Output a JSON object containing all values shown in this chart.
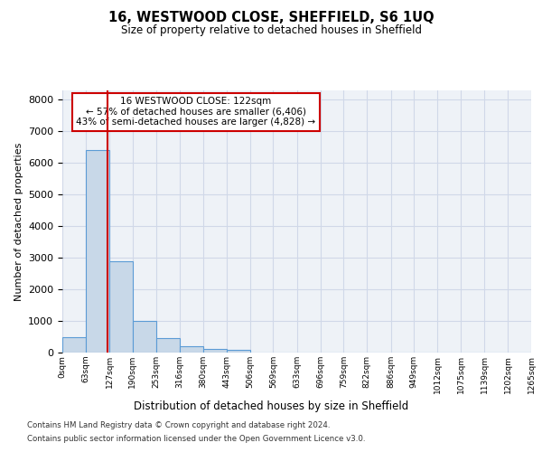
{
  "title": "16, WESTWOOD CLOSE, SHEFFIELD, S6 1UQ",
  "subtitle": "Size of property relative to detached houses in Sheffield",
  "xlabel": "Distribution of detached houses by size in Sheffield",
  "ylabel": "Number of detached properties",
  "property_size": 122,
  "bin_edges": [
    0,
    63,
    127,
    190,
    253,
    316,
    380,
    443,
    506,
    569,
    633,
    696,
    759,
    822,
    886,
    949,
    1012,
    1075,
    1139,
    1202,
    1265
  ],
  "bar_heights": [
    500,
    6400,
    2900,
    1000,
    450,
    200,
    120,
    80,
    0,
    0,
    0,
    0,
    0,
    0,
    0,
    0,
    0,
    0,
    0,
    0
  ],
  "bar_color": "#c8d8e8",
  "bar_edgecolor": "#5b9bd5",
  "redline_color": "#cc0000",
  "grid_color": "#d0d8e8",
  "bg_color": "#eef2f7",
  "annotation_line1": "16 WESTWOOD CLOSE: 122sqm",
  "annotation_line2": "← 57% of detached houses are smaller (6,406)",
  "annotation_line3": "43% of semi-detached houses are larger (4,828) →",
  "annotation_box_edgecolor": "#cc0000",
  "annotation_box_facecolor": "#ffffff",
  "ylim": [
    0,
    8300
  ],
  "yticks": [
    0,
    1000,
    2000,
    3000,
    4000,
    5000,
    6000,
    7000,
    8000
  ],
  "footnote1": "Contains HM Land Registry data © Crown copyright and database right 2024.",
  "footnote2": "Contains public sector information licensed under the Open Government Licence v3.0.",
  "tick_labels": [
    "0sqm",
    "63sqm",
    "127sqm",
    "190sqm",
    "253sqm",
    "316sqm",
    "380sqm",
    "443sqm",
    "506sqm",
    "569sqm",
    "633sqm",
    "696sqm",
    "759sqm",
    "822sqm",
    "886sqm",
    "949sqm",
    "1012sqm",
    "1075sqm",
    "1139sqm",
    "1202sqm",
    "1265sqm"
  ]
}
